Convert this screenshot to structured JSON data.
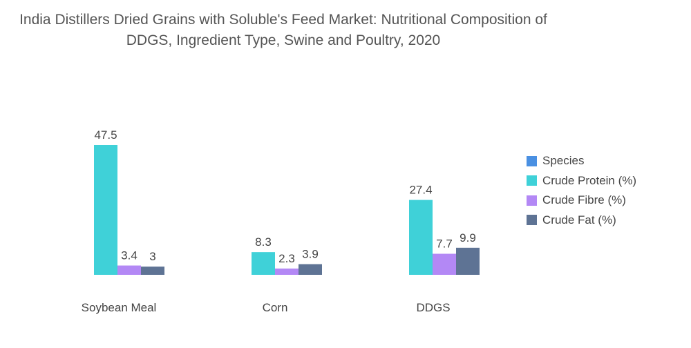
{
  "chart_data": {
    "type": "bar",
    "title": "India Distillers Dried Grains with Soluble's Feed Market: Nutritional Composition of DDGS, Ingredient Type, Swine and Poultry, 2020",
    "categories": [
      "Soybean Meal",
      "Corn",
      "DDGS"
    ],
    "series": [
      {
        "name": "Species",
        "color": "#4a90e2",
        "values": [
          null,
          null,
          null
        ]
      },
      {
        "name": "Crude Protein (%)",
        "color": "#3fd1d8",
        "values": [
          47.5,
          8.3,
          27.4
        ]
      },
      {
        "name": "Crude Fibre (%)",
        "color": "#b388f5",
        "values": [
          3.4,
          2.3,
          7.7
        ]
      },
      {
        "name": "Crude Fat (%)",
        "color": "#5e7394",
        "values": [
          3,
          3.9,
          9.9
        ]
      }
    ],
    "xlabel": "",
    "ylabel": "",
    "ylim": [
      0,
      50
    ],
    "legend_position": "right"
  }
}
